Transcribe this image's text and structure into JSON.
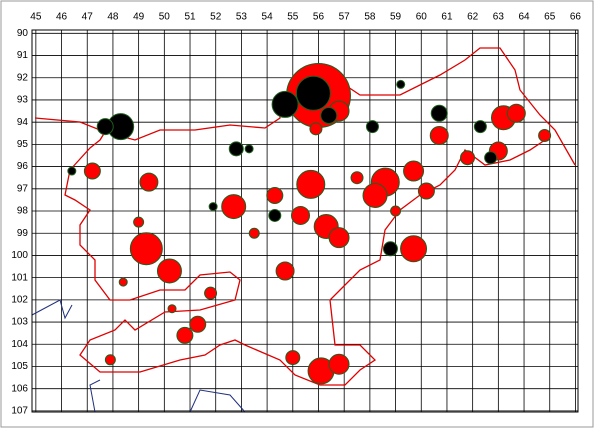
{
  "chart_data": {
    "type": "bubble",
    "xlim": [
      44.85,
      66.1
    ],
    "ylim": [
      89.85,
      107.05
    ],
    "y_inverted": true,
    "x_axis_position": "top",
    "grid": true,
    "xticks": [
      45,
      46,
      47,
      48,
      49,
      50,
      51,
      52,
      53,
      54,
      55,
      56,
      57,
      58,
      59,
      60,
      61,
      62,
      63,
      64,
      65,
      66
    ],
    "yticks": [
      90,
      91,
      92,
      93,
      94,
      95,
      96,
      97,
      98,
      99,
      100,
      101,
      102,
      103,
      104,
      105,
      106,
      107
    ],
    "marker_edge_color": "#1f5f1f",
    "series": [
      {
        "color": "#ff0000",
        "x": [
          56.0,
          49.3,
          50.2,
          59.7,
          55.7,
          52.7,
          56.3,
          56.8,
          58.6,
          58.2,
          59.7,
          60.7,
          63.2,
          63.7,
          63.0,
          56.1,
          56.8,
          54.7,
          50.8,
          51.3,
          49.4,
          55.3,
          54.3,
          47.2,
          60.2,
          56.8,
          55.9,
          64.8,
          55.0,
          47.9,
          49.0,
          51.8,
          57.5,
          59.0,
          53.5,
          61.8,
          48.4,
          50.3
        ],
        "y": [
          92.8,
          99.7,
          100.7,
          99.7,
          96.8,
          97.8,
          98.7,
          99.2,
          96.7,
          97.3,
          96.2,
          94.6,
          93.8,
          93.6,
          95.3,
          105.2,
          104.9,
          100.7,
          103.6,
          103.1,
          96.7,
          98.2,
          97.3,
          96.2,
          97.1,
          93.5,
          94.3,
          94.6,
          104.6,
          104.7,
          98.5,
          101.7,
          96.5,
          98.0,
          99.0,
          95.6,
          101.2,
          102.4
        ],
        "sizes": [
          32,
          16,
          12,
          13,
          14,
          12,
          12,
          10,
          14,
          12,
          10,
          9,
          12,
          9,
          9,
          13,
          10,
          9,
          8,
          8,
          9,
          9,
          8,
          8,
          8,
          10,
          6,
          6,
          7,
          5,
          5,
          6,
          6,
          5,
          5,
          7,
          4,
          4
        ]
      },
      {
        "color": "#000000",
        "x": [
          55.8,
          54.7,
          48.3,
          47.7,
          52.8,
          53.3,
          58.8,
          60.7,
          62.7,
          62.3,
          54.3,
          56.4,
          58.1,
          46.4,
          59.2,
          51.9
        ],
        "y": [
          92.7,
          93.2,
          94.2,
          94.2,
          95.2,
          95.2,
          99.7,
          93.6,
          95.6,
          94.2,
          98.2,
          93.7,
          94.2,
          96.2,
          92.3,
          97.8
        ],
        "sizes": [
          17,
          13,
          13,
          8,
          7,
          4,
          7,
          8,
          6,
          6,
          6,
          8,
          6,
          4,
          4,
          4
        ]
      }
    ]
  }
}
